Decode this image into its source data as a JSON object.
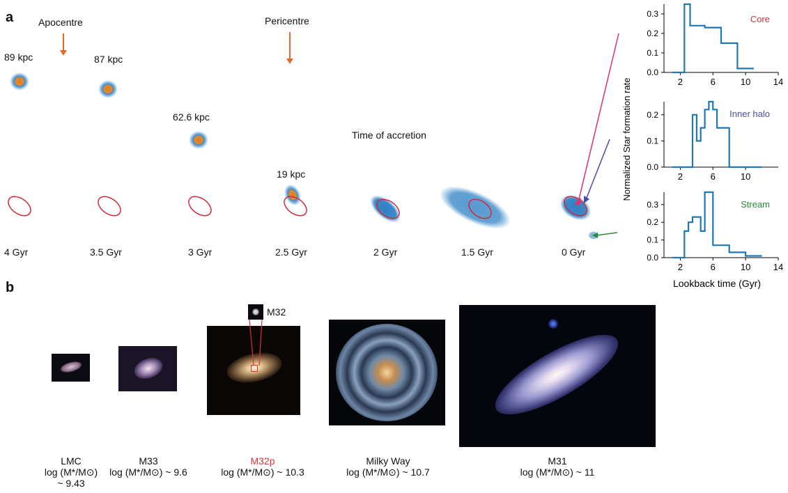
{
  "panel_a": {
    "label": "a",
    "apocentre": "Apocentre",
    "pericentre": "Pericentre",
    "accretion": "Time of accretion",
    "distances": [
      "89 kpc",
      "87 kpc",
      "62.6 kpc",
      "19 kpc"
    ],
    "times": [
      "4 Gyr",
      "3.5 Gyr",
      "3 Gyr",
      "2.5 Gyr",
      "2 Gyr",
      "1.5 Gyr",
      "0 Gyr"
    ]
  },
  "panel_b": {
    "label": "b",
    "inset_label": "M32",
    "galaxies": [
      {
        "name": "LMC",
        "mass": "log (M*/M⊙)",
        "value": "~ 9.43"
      },
      {
        "name": "M33",
        "mass": "log (M*/M⊙) ~ 9.6"
      },
      {
        "name": "M32p",
        "mass": "log (M*/M⊙) ~ 10.3"
      },
      {
        "name": "Milky Way",
        "mass": "log (M*/M⊙) ~ 10.7"
      },
      {
        "name": "M31",
        "mass": "log (M*/M⊙) ~ 11"
      }
    ]
  },
  "colors": {
    "hist": "#1f77b4",
    "core": "#e0303a",
    "inner_halo": "#4a4aa8",
    "stream": "#2a8a3a",
    "ellipse": "#d02a3a",
    "arrow": "#e06a2a",
    "m32p": "#e0303a"
  },
  "chart_data": [
    {
      "type": "line",
      "title": "Core",
      "step": true,
      "x": [
        1,
        2.5,
        2.5,
        3.2,
        3.2,
        5,
        5,
        7,
        7,
        9,
        9,
        11
      ],
      "y": [
        0,
        0,
        0.35,
        0.35,
        0.24,
        0.24,
        0.23,
        0.23,
        0.15,
        0.15,
        0.02,
        0.02
      ],
      "ylim": [
        0,
        0.35
      ],
      "xlim": [
        0,
        14
      ],
      "yticks": [
        "0.0",
        "0.1",
        "0.2",
        "0.3"
      ],
      "xticks": [
        "2",
        "6",
        "10",
        "14"
      ]
    },
    {
      "type": "line",
      "title": "Inner halo",
      "step": true,
      "x": [
        1,
        3.5,
        3.5,
        4,
        4,
        4.5,
        4.5,
        5,
        5,
        5.5,
        5.5,
        6,
        6,
        6.5,
        6.5,
        8,
        8,
        10,
        10,
        12
      ],
      "y": [
        0,
        0,
        0.2,
        0.2,
        0.1,
        0.1,
        0.15,
        0.15,
        0.22,
        0.22,
        0.25,
        0.25,
        0.22,
        0.22,
        0.15,
        0.15,
        0,
        0,
        0,
        0
      ],
      "ylim": [
        0,
        0.25
      ],
      "xlim": [
        0,
        14
      ],
      "yticks": [
        "0.0",
        "0.1",
        "0.2"
      ],
      "xticks": [
        "2",
        "6",
        "10"
      ]
    },
    {
      "type": "line",
      "title": "Stream",
      "xlabel": "Lookback time (Gyr)",
      "step": true,
      "x": [
        1,
        2.5,
        2.5,
        3,
        3,
        3.5,
        3.5,
        4.5,
        4.5,
        5,
        5,
        5.5,
        5.5,
        6,
        6,
        8,
        8,
        10,
        10,
        12
      ],
      "y": [
        0,
        0,
        0.15,
        0.15,
        0.2,
        0.2,
        0.23,
        0.23,
        0.15,
        0.15,
        0.37,
        0.37,
        0.37,
        0.37,
        0.07,
        0.07,
        0.03,
        0.03,
        0.01,
        0.01
      ],
      "ylim": [
        0,
        0.37
      ],
      "xlim": [
        0,
        14
      ],
      "yticks": [
        "0.0",
        "0.1",
        "0.2",
        "0.3"
      ],
      "xticks": [
        "2",
        "6",
        "10",
        "14"
      ]
    }
  ],
  "shared_ylabel": "Normalized Star formation rate"
}
